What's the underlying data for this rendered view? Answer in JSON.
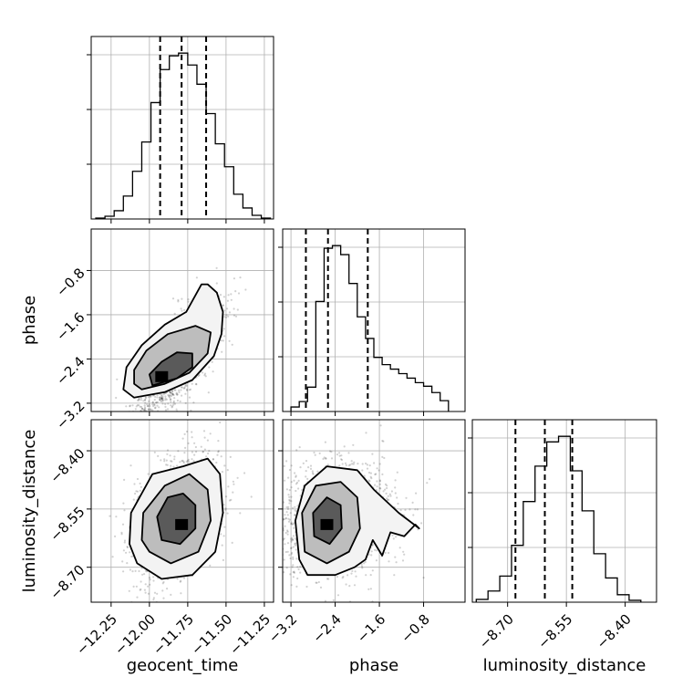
{
  "chart_data": {
    "type": "corner",
    "parameters": [
      "geocent_time",
      "phase",
      "luminosity_distance"
    ],
    "ranges": {
      "geocent_time": [
        -12.38,
        -11.19
      ],
      "phase": [
        -3.35,
        -0.05
      ],
      "luminosity_distance": [
        -8.79,
        -8.32
      ]
    },
    "ticks": {
      "geocent_time": {
        "values": [
          -12.25,
          -12.0,
          -11.75,
          -11.5,
          -11.25
        ],
        "labels": [
          "−12.25",
          "−12.00",
          "−11.75",
          "−11.50",
          "−11.25"
        ]
      },
      "phase": {
        "values": [
          -3.2,
          -2.4,
          -1.6,
          -0.8
        ],
        "labels": [
          "−3.2",
          "−2.4",
          "−1.6",
          "−0.8"
        ]
      },
      "luminosity_distance": {
        "values": [
          -8.7,
          -8.55,
          -8.4
        ],
        "labels": [
          "−8.70",
          "−8.55",
          "−8.40"
        ]
      }
    },
    "histograms": {
      "geocent_time": {
        "bin_edges": [
          -12.35,
          -12.29,
          -12.23,
          -12.17,
          -12.11,
          -12.05,
          -11.99,
          -11.93,
          -11.87,
          -11.81,
          -11.75,
          -11.69,
          -11.63,
          -11.57,
          -11.51,
          -11.45,
          -11.39,
          -11.33,
          -11.27,
          -11.21
        ],
        "counts": [
          1,
          3,
          9,
          25,
          52,
          84,
          127,
          163,
          178,
          181,
          168,
          147,
          115,
          82,
          57,
          27,
          12,
          4,
          1
        ],
        "quantiles": [
          -11.93,
          -11.79,
          -11.63
        ]
      },
      "phase": {
        "bin_edges": [
          -3.2,
          -3.05,
          -2.9,
          -2.75,
          -2.6,
          -2.45,
          -2.3,
          -2.15,
          -2.0,
          -1.85,
          -1.7,
          -1.55,
          -1.4,
          -1.25,
          -1.1,
          -0.95,
          -0.8,
          -0.65,
          -0.5,
          -0.35
        ],
        "counts": [
          5,
          11,
          27,
          122,
          181,
          184,
          174,
          142,
          105,
          81,
          60,
          52,
          47,
          42,
          37,
          32,
          28,
          21,
          12
        ],
        "quantiles": [
          -2.93,
          -2.53,
          -1.81
        ]
      },
      "luminosity_distance": {
        "bin_edges": [
          -8.78,
          -8.75,
          -8.72,
          -8.69,
          -8.66,
          -8.63,
          -8.6,
          -8.57,
          -8.54,
          -8.51,
          -8.48,
          -8.45,
          -8.42,
          -8.39,
          -8.36
        ],
        "counts": [
          3,
          12,
          28,
          61,
          108,
          146,
          172,
          178,
          141,
          98,
          52,
          26,
          8,
          2
        ],
        "quantiles": [
          -8.68,
          -8.605,
          -8.535
        ]
      }
    },
    "contours": {
      "phase_vs_geocent_time": {
        "points_center": [
          -11.82,
          -2.45
        ],
        "peak": [
          -11.92,
          -2.72
        ],
        "levels": [
          [
            [
              -12.1,
              -3.1
            ],
            [
              -11.9,
              -3.0
            ],
            [
              -11.72,
              -2.78
            ],
            [
              -11.58,
              -2.35
            ],
            [
              -11.53,
              -1.95
            ],
            [
              -11.52,
              -1.55
            ],
            [
              -11.56,
              -1.2
            ],
            [
              -11.62,
              -1.05
            ],
            [
              -11.66,
              -1.05
            ],
            [
              -11.76,
              -1.55
            ],
            [
              -11.9,
              -1.78
            ],
            [
              -12.05,
              -2.15
            ],
            [
              -12.15,
              -2.55
            ],
            [
              -12.17,
              -2.95
            ]
          ],
          [
            [
              -12.05,
              -2.95
            ],
            [
              -11.9,
              -2.85
            ],
            [
              -11.74,
              -2.65
            ],
            [
              -11.62,
              -2.3
            ],
            [
              -11.6,
              -1.92
            ],
            [
              -11.7,
              -1.8
            ],
            [
              -11.88,
              -1.95
            ],
            [
              -12.02,
              -2.25
            ],
            [
              -12.1,
              -2.6
            ],
            [
              -12.1,
              -2.85
            ]
          ],
          [
            [
              -11.98,
              -2.88
            ],
            [
              -11.82,
              -2.75
            ],
            [
              -11.72,
              -2.55
            ],
            [
              -11.72,
              -2.3
            ],
            [
              -11.82,
              -2.28
            ],
            [
              -11.92,
              -2.45
            ],
            [
              -12.0,
              -2.68
            ]
          ]
        ]
      },
      "luminosity_distance_vs_geocent_time": {
        "points_center": [
          -11.83,
          -8.57
        ],
        "peak": [
          -11.79,
          -8.59
        ],
        "levels": [
          [
            [
              -12.08,
              -8.69
            ],
            [
              -11.92,
              -8.73
            ],
            [
              -11.72,
              -8.72
            ],
            [
              -11.57,
              -8.66
            ],
            [
              -11.52,
              -8.56
            ],
            [
              -11.54,
              -8.46
            ],
            [
              -11.62,
              -8.42
            ],
            [
              -11.78,
              -8.44
            ],
            [
              -11.98,
              -8.46
            ],
            [
              -12.12,
              -8.56
            ],
            [
              -12.13,
              -8.64
            ]
          ],
          [
            [
              -12.0,
              -8.66
            ],
            [
              -11.86,
              -8.69
            ],
            [
              -11.68,
              -8.66
            ],
            [
              -11.6,
              -8.58
            ],
            [
              -11.62,
              -8.5
            ],
            [
              -11.74,
              -8.46
            ],
            [
              -11.9,
              -8.49
            ],
            [
              -12.04,
              -8.56
            ],
            [
              -12.05,
              -8.63
            ]
          ],
          [
            [
              -11.92,
              -8.63
            ],
            [
              -11.8,
              -8.64
            ],
            [
              -11.7,
              -8.6
            ],
            [
              -11.7,
              -8.54
            ],
            [
              -11.78,
              -8.51
            ],
            [
              -11.88,
              -8.52
            ],
            [
              -11.95,
              -8.57
            ]
          ]
        ]
      },
      "luminosity_distance_vs_phase": {
        "points_center": [
          -2.45,
          -8.58
        ],
        "peak": [
          -2.55,
          -8.59
        ],
        "levels": [
          [
            [
              -3.05,
              -8.68
            ],
            [
              -2.9,
              -8.72
            ],
            [
              -2.4,
              -8.72
            ],
            [
              -2.05,
              -8.7
            ],
            [
              -1.85,
              -8.68
            ],
            [
              -1.72,
              -8.63
            ],
            [
              -1.55,
              -8.67
            ],
            [
              -1.4,
              -8.61
            ],
            [
              -1.15,
              -8.62
            ],
            [
              -0.95,
              -8.59
            ],
            [
              -0.88,
              -8.6
            ],
            [
              -1.25,
              -8.56
            ],
            [
              -1.7,
              -8.5
            ],
            [
              -2.0,
              -8.45
            ],
            [
              -2.55,
              -8.44
            ],
            [
              -2.95,
              -8.49
            ],
            [
              -3.12,
              -8.58
            ]
          ],
          [
            [
              -2.95,
              -8.66
            ],
            [
              -2.55,
              -8.69
            ],
            [
              -2.15,
              -8.66
            ],
            [
              -1.95,
              -8.6
            ],
            [
              -2.0,
              -8.52
            ],
            [
              -2.3,
              -8.48
            ],
            [
              -2.75,
              -8.49
            ],
            [
              -3.0,
              -8.56
            ]
          ],
          [
            [
              -2.78,
              -8.62
            ],
            [
              -2.5,
              -8.64
            ],
            [
              -2.28,
              -8.6
            ],
            [
              -2.3,
              -8.54
            ],
            [
              -2.55,
              -8.52
            ],
            [
              -2.8,
              -8.56
            ]
          ]
        ]
      }
    },
    "grid": true,
    "legend": "none"
  }
}
